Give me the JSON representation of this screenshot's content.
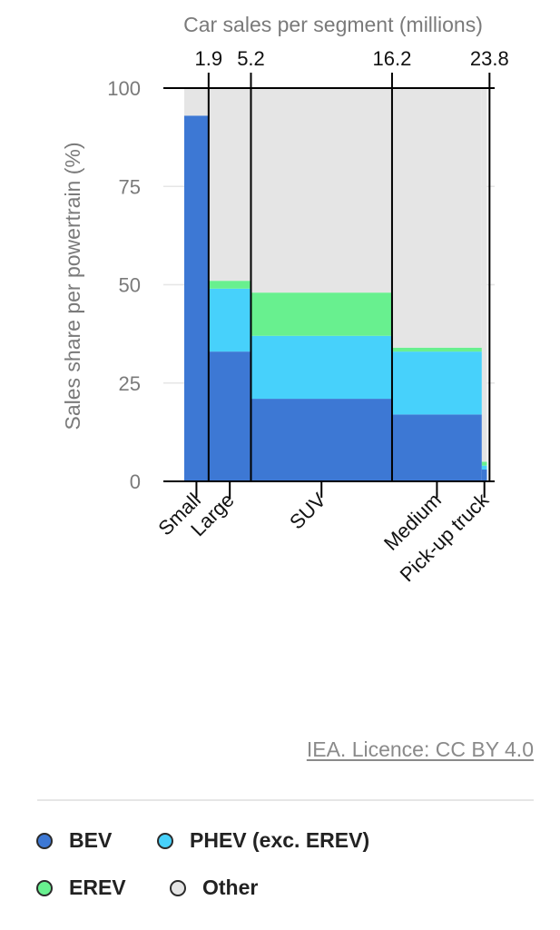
{
  "chart_data": {
    "type": "marimekko",
    "title": "Car sales per segment (millions)",
    "ylabel": "Sales share per powertrain (%)",
    "ylim": [
      0,
      100
    ],
    "yticks": [
      0,
      25,
      50,
      75,
      100
    ],
    "x_cumulative_ticks": [
      "1.9",
      "5.2",
      "16.2",
      "23.8"
    ],
    "x_cumulative_values": [
      1.9,
      5.2,
      16.2,
      23.8
    ],
    "xlim": [
      0,
      24.2
    ],
    "categories": [
      "Small",
      "Large",
      "SUV",
      "Medium",
      "Pick-up truck"
    ],
    "widths": [
      1.9,
      3.3,
      11.0,
      7.0,
      0.4
    ],
    "series": [
      {
        "name": "BEV",
        "values": [
          93,
          33,
          21,
          17,
          3
        ]
      },
      {
        "name": "PHEV (exc. EREV)",
        "values": [
          0,
          16,
          16,
          16,
          1
        ]
      },
      {
        "name": "EREV",
        "values": [
          0,
          2,
          11,
          1,
          1
        ]
      },
      {
        "name": "Other",
        "values": [
          7,
          49,
          52,
          66,
          95
        ]
      }
    ],
    "grid": true,
    "legend_position": "bottom"
  },
  "colors": {
    "BEV": "#3d78d4",
    "PHEV (exc. EREV)": "#47d1fb",
    "EREV": "#68f08f",
    "Other": "#e5e5e5",
    "axis": "#000000",
    "grid": "#e6e6e6",
    "tick_text": "#7a7a7a"
  },
  "credit": "IEA. Licence: CC BY 4.0",
  "legend": [
    {
      "label": "BEV",
      "color": "#3d78d4"
    },
    {
      "label": "PHEV (exc. EREV)",
      "color": "#47d1fb"
    },
    {
      "label": "EREV",
      "color": "#68f08f"
    },
    {
      "label": "Other",
      "color": "#e5e5e5"
    }
  ]
}
